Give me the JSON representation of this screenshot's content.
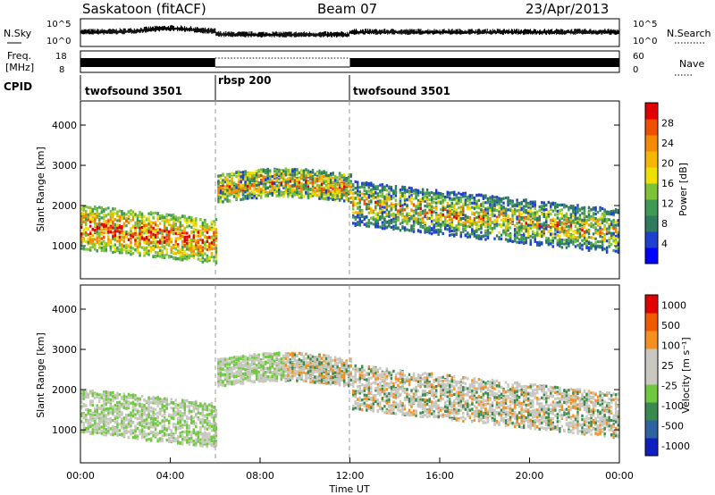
{
  "header": {
    "radar": "Saskatoon (fitACF)",
    "beam": "Beam 07",
    "date": "23/Apr/2013"
  },
  "strip": {
    "nsky_label": "N.Sky",
    "nsky_ticks": [
      "10^5",
      "10^0"
    ],
    "nsearch_label": "N.Search",
    "nsearch_ticks": [
      "10^5",
      "10^0"
    ],
    "freq_label_1": "Freq.",
    "freq_label_2": "[MHz]",
    "freq_ticks": [
      "18",
      "8"
    ],
    "nave_label": "Nave",
    "nave_ticks": [
      "60",
      "0"
    ],
    "cpid_label": "CPID"
  },
  "cpid_segments": [
    {
      "label": "twofsound 3501",
      "start": "00:00",
      "end": "06:00"
    },
    {
      "label": "rbsp 200",
      "start": "06:00",
      "end": "12:00"
    },
    {
      "label": "twofsound 3501",
      "start": "12:00",
      "end": "24:00"
    }
  ],
  "colors": {
    "power_scale": [
      "#0000ff",
      "#1f3fd0",
      "#2e7b5e",
      "#3f9a55",
      "#7dc33a",
      "#f0e000",
      "#f5b800",
      "#f58a00",
      "#f04e00",
      "#e00000"
    ],
    "velocity_scale": [
      "#e00000",
      "#f05a00",
      "#f59020",
      "#c8c8c0",
      "#c8c8c0",
      "#70c840",
      "#3a8a50",
      "#2e62a0",
      "#1020c0"
    ]
  },
  "chart_data": [
    {
      "type": "heatmap",
      "panel": "power",
      "xlabel": "Time UT",
      "ylabel": "Slant Range [km]",
      "xlim": [
        "00:00",
        "24:00"
      ],
      "ylim": [
        180,
        4600
      ],
      "x_ticks": [
        "00:00",
        "04:00",
        "08:00",
        "12:00",
        "16:00",
        "20:00",
        "00:00"
      ],
      "y_ticks": [
        "1000",
        "2000",
        "3000",
        "4000"
      ],
      "colorbar_label": "Power [dB]",
      "colorbar_ticks": [
        "4",
        "8",
        "12",
        "16",
        "20",
        "24",
        "28"
      ],
      "colorbar_range": [
        0,
        30
      ]
    },
    {
      "type": "heatmap",
      "panel": "velocity",
      "xlabel": "Time UT",
      "ylabel": "Slant Range [km]",
      "xlim": [
        "00:00",
        "24:00"
      ],
      "ylim": [
        180,
        4600
      ],
      "x_ticks": [
        "00:00",
        "04:00",
        "08:00",
        "12:00",
        "16:00",
        "20:00",
        "00:00"
      ],
      "y_ticks": [
        "1000",
        "2000",
        "3000",
        "4000"
      ],
      "colorbar_label": "Velocity [m s⁻¹]",
      "colorbar_ticks": [
        "1000",
        "500",
        "100",
        "25",
        "-25",
        "-100",
        "-500",
        "-1000"
      ],
      "ground_scatter": "grey"
    }
  ]
}
